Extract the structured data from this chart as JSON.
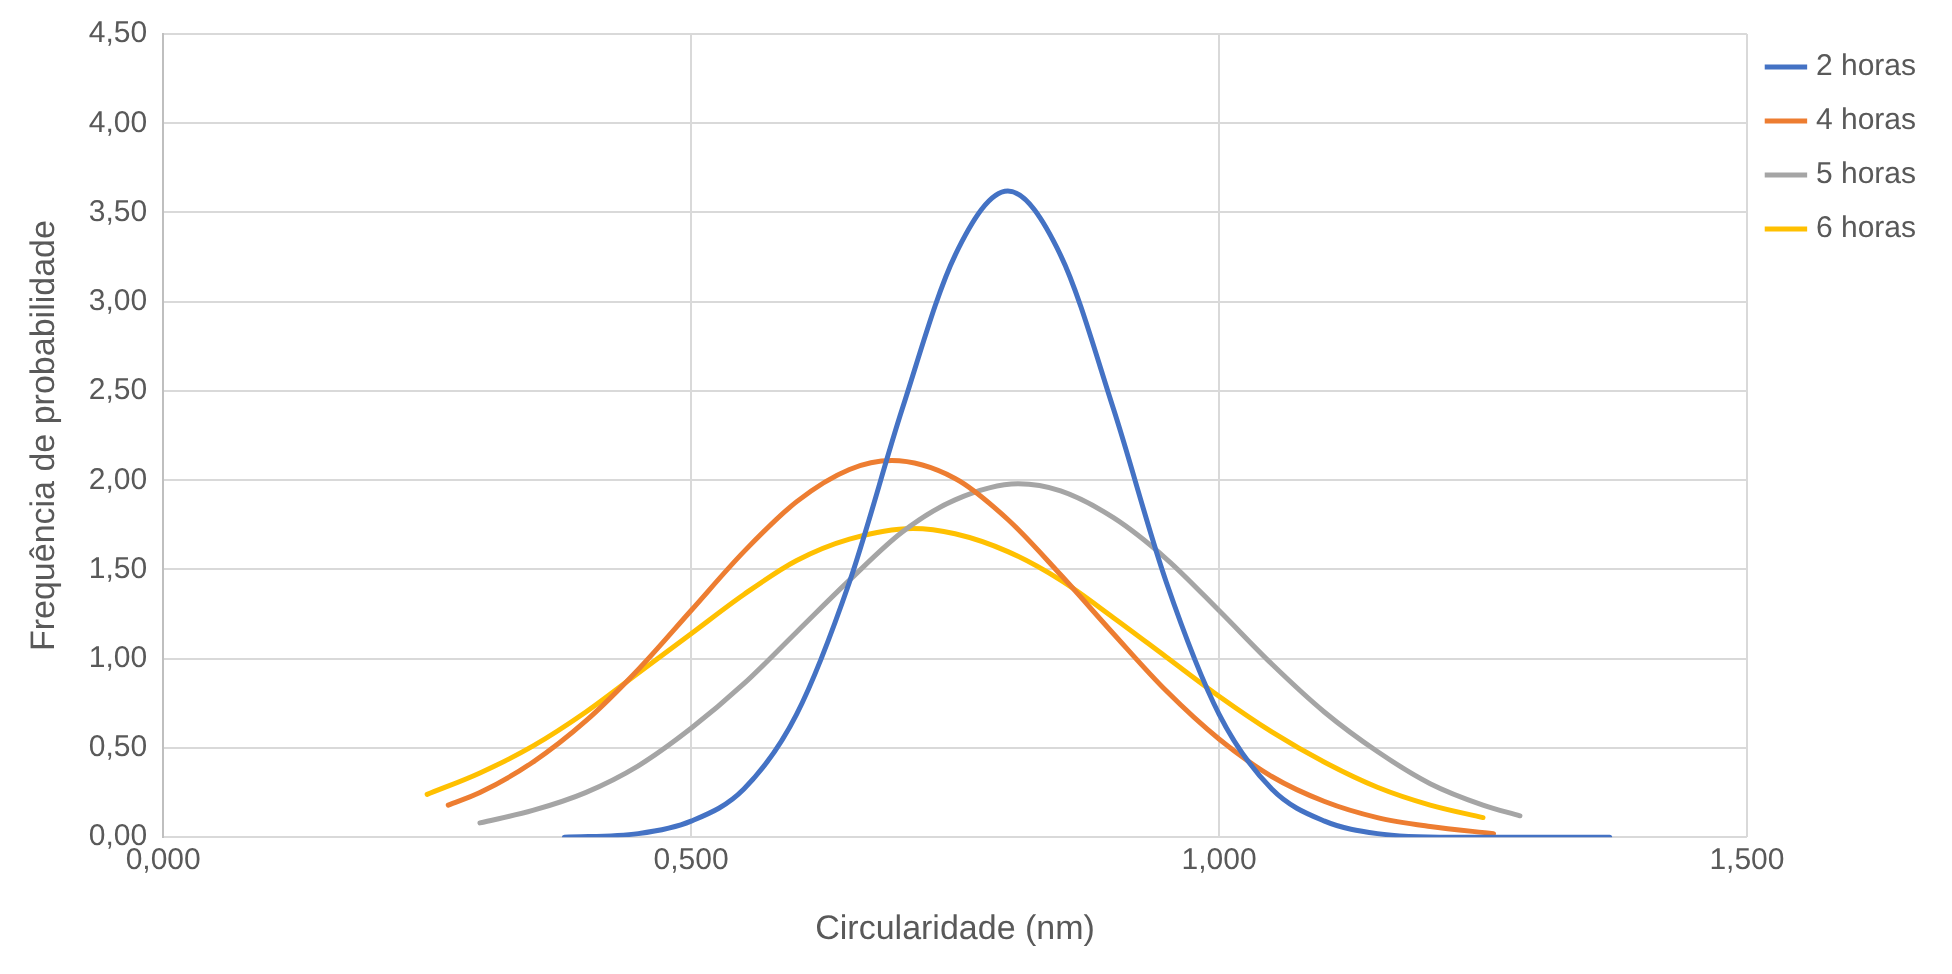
{
  "chart_data": {
    "type": "line",
    "xlabel": "Circularidade (nm)",
    "ylabel": "Frequência de probabilidade",
    "xlim": [
      0,
      1.5
    ],
    "xticks": [
      {
        "value": 0,
        "label": "0,000"
      },
      {
        "value": 0.5,
        "label": "0,500"
      },
      {
        "value": 1,
        "label": "1,000"
      },
      {
        "value": 1.5,
        "label": "1,500"
      }
    ],
    "ylim": [
      0,
      4.5
    ],
    "yticks": [
      {
        "value": 0,
        "label": "0,00"
      },
      {
        "value": 0.5,
        "label": "0,50"
      },
      {
        "value": 1,
        "label": "1,00"
      },
      {
        "value": 1.5,
        "label": "1,50"
      },
      {
        "value": 2,
        "label": "2,00"
      },
      {
        "value": 2.5,
        "label": "2,50"
      },
      {
        "value": 3,
        "label": "3,00"
      },
      {
        "value": 3.5,
        "label": "3,50"
      },
      {
        "value": 4,
        "label": "4,00"
      },
      {
        "value": 4.5,
        "label": "4,50"
      }
    ],
    "grid": true,
    "legend": "right",
    "marker": "none",
    "line_style": "solid",
    "series": [
      {
        "name": "2 horas",
        "color": "#4472c4",
        "x": [
          0.38,
          0.45,
          0.5,
          0.55,
          0.6,
          0.65,
          0.7,
          0.75,
          0.8,
          0.85,
          0.9,
          0.95,
          1,
          1.05,
          1.1,
          1.15,
          1.22,
          1.37
        ],
        "values": [
          0,
          0.02,
          0.09,
          0.27,
          0.69,
          1.43,
          2.4,
          3.26,
          3.62,
          3.26,
          2.4,
          1.43,
          0.69,
          0.27,
          0.09,
          0.02,
          0,
          0
        ]
      },
      {
        "name": "4 horas",
        "color": "#ed7d31",
        "x": [
          0.27,
          0.3,
          0.35,
          0.4,
          0.45,
          0.5,
          0.55,
          0.6,
          0.65,
          0.69,
          0.75,
          0.8,
          0.85,
          0.9,
          0.95,
          1,
          1.05,
          1.1,
          1.15,
          1.2,
          1.26
        ],
        "values": [
          0.18,
          0.25,
          0.42,
          0.65,
          0.94,
          1.27,
          1.6,
          1.88,
          2.06,
          2.11,
          2.01,
          1.78,
          1.47,
          1.14,
          0.82,
          0.55,
          0.34,
          0.2,
          0.11,
          0.06,
          0.02
        ]
      },
      {
        "name": "5 horas",
        "color": "#a5a5a5",
        "x": [
          0.3,
          0.35,
          0.4,
          0.45,
          0.5,
          0.55,
          0.6,
          0.65,
          0.7,
          0.75,
          0.81,
          0.85,
          0.9,
          0.95,
          1,
          1.05,
          1.1,
          1.15,
          1.2,
          1.25,
          1.285
        ],
        "values": [
          0.08,
          0.15,
          0.25,
          0.4,
          0.61,
          0.86,
          1.15,
          1.44,
          1.71,
          1.89,
          1.98,
          1.94,
          1.79,
          1.56,
          1.27,
          0.97,
          0.7,
          0.48,
          0.3,
          0.18,
          0.12
        ]
      },
      {
        "name": "6 horas",
        "color": "#ffc000",
        "x": [
          0.25,
          0.3,
          0.35,
          0.4,
          0.45,
          0.5,
          0.55,
          0.6,
          0.65,
          0.71,
          0.75,
          0.8,
          0.85,
          0.9,
          0.95,
          1,
          1.05,
          1.1,
          1.15,
          1.2,
          1.25
        ],
        "values": [
          0.24,
          0.36,
          0.51,
          0.7,
          0.92,
          1.14,
          1.36,
          1.55,
          1.67,
          1.73,
          1.7,
          1.6,
          1.44,
          1.23,
          1.01,
          0.79,
          0.59,
          0.42,
          0.28,
          0.18,
          0.11
        ]
      }
    ]
  }
}
